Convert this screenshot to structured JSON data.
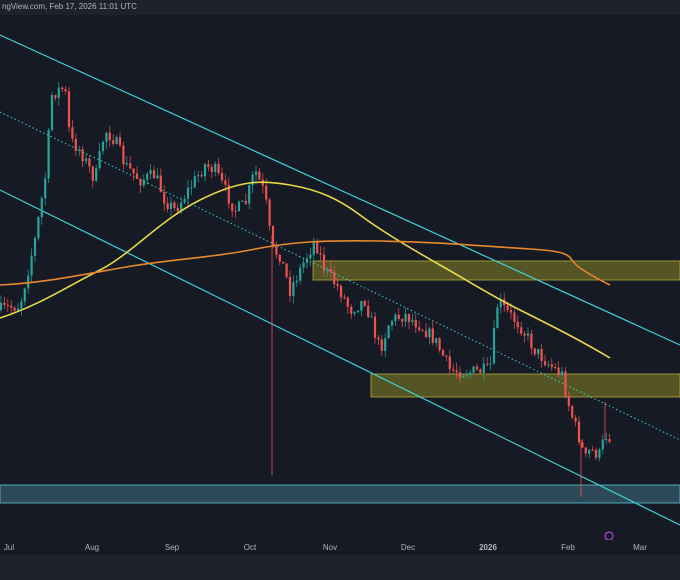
{
  "header": {
    "source": "ngView.com, Feb 17, 2026 11:01 UTC"
  },
  "time_axis": {
    "labels": [
      "Jul",
      "Aug",
      "Sep",
      "Oct",
      "Nov",
      "Dec",
      "2026",
      "Feb",
      "Mar"
    ]
  }
}
